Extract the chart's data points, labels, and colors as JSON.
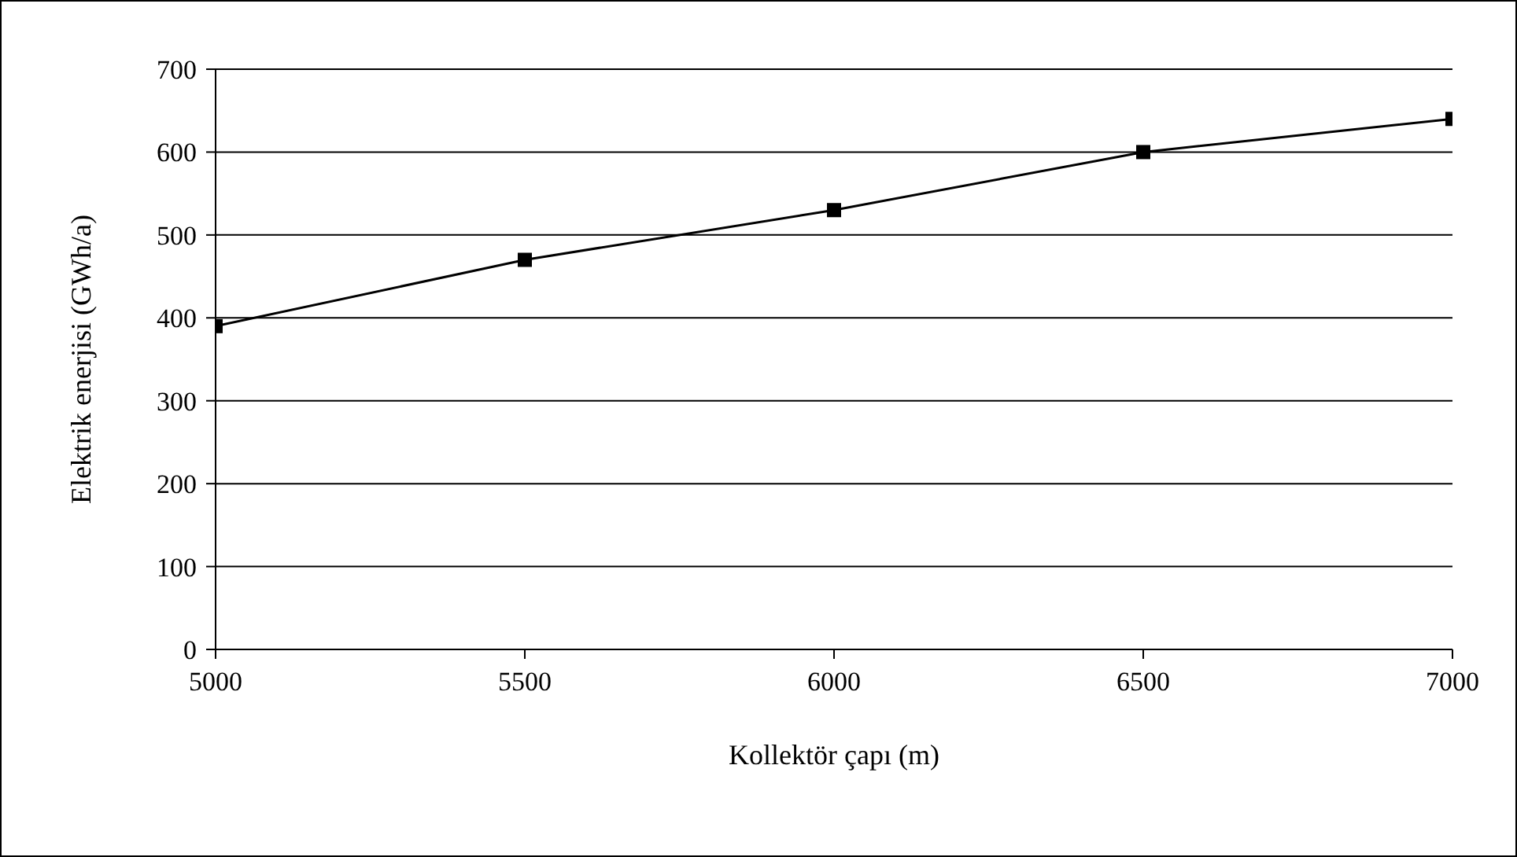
{
  "chart_data": {
    "type": "line",
    "xlabel": "Kollektör çapı (m)",
    "ylabel": "Elektrik enerjisi (GWh/a)",
    "x": [
      5000,
      5500,
      6000,
      6500,
      7000
    ],
    "series": [
      {
        "color": "#000000",
        "values": [
          390,
          470,
          530,
          600,
          640
        ]
      }
    ],
    "xlim": [
      5000,
      7000
    ],
    "xticks": [
      5000,
      5500,
      6000,
      6500,
      7000
    ],
    "ylim": [
      0,
      700
    ],
    "yticks": [
      0,
      100,
      200,
      300,
      400,
      500,
      600,
      700
    ],
    "grid": "y",
    "legend": false,
    "marker": "square",
    "line_style": "solid"
  }
}
